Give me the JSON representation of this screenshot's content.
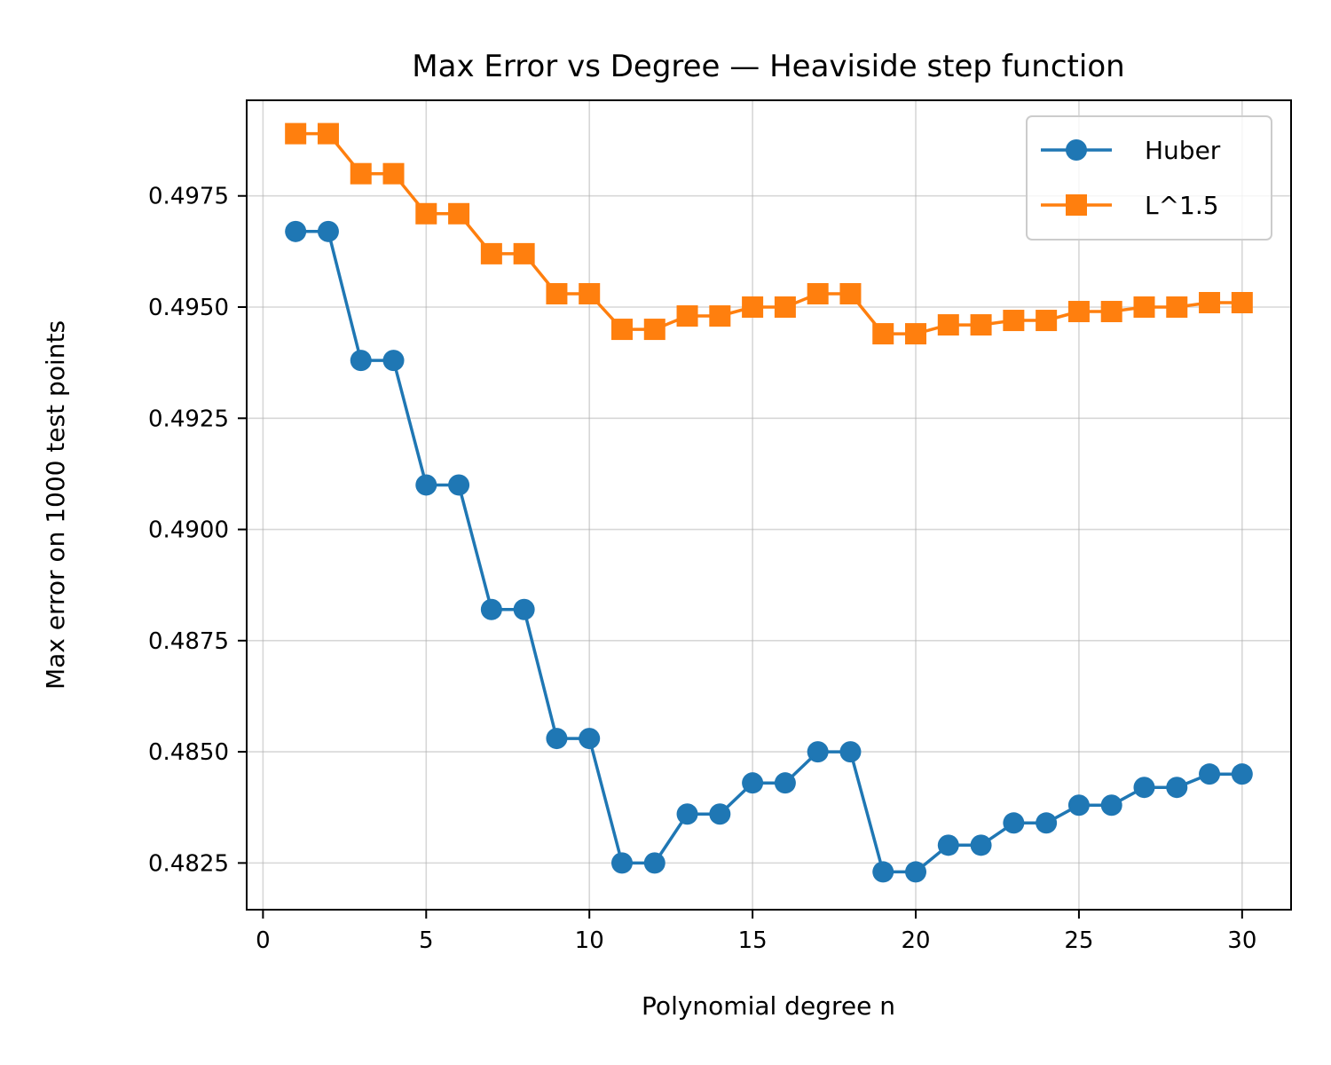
{
  "chart_data": {
    "type": "line",
    "title": "Max Error vs Degree — Heaviside step function",
    "xlabel": "Polynomial degree n",
    "ylabel": "Max error on 1000 test points",
    "xlim": [
      -0.5,
      31.5
    ],
    "ylim": [
      0.48145,
      0.49965
    ],
    "xticks": [
      0,
      5,
      10,
      15,
      20,
      25,
      30
    ],
    "xtick_labels": [
      "0",
      "5",
      "10",
      "15",
      "20",
      "25",
      "30"
    ],
    "yticks": [
      0.4825,
      0.485,
      0.4875,
      0.49,
      0.4925,
      0.495,
      0.4975
    ],
    "ytick_labels": [
      "0.4825",
      "0.4850",
      "0.4875",
      "0.4900",
      "0.4925",
      "0.4950",
      "0.4975"
    ],
    "grid": true,
    "legend_position": "top-right",
    "x": [
      1,
      2,
      3,
      4,
      5,
      6,
      7,
      8,
      9,
      10,
      11,
      12,
      13,
      14,
      15,
      16,
      17,
      18,
      19,
      20,
      21,
      22,
      23,
      24,
      25,
      26,
      27,
      28,
      29,
      30
    ],
    "series": [
      {
        "name": "Huber",
        "color": "#1f77b4",
        "marker": "circle",
        "values": [
          0.4967,
          0.4967,
          0.4938,
          0.4938,
          0.491,
          0.491,
          0.4882,
          0.4882,
          0.4853,
          0.4853,
          0.4825,
          0.4825,
          0.4836,
          0.4836,
          0.4843,
          0.4843,
          0.485,
          0.485,
          0.4823,
          0.4823,
          0.4829,
          0.4829,
          0.4834,
          0.4834,
          0.4838,
          0.4838,
          0.4842,
          0.4842,
          0.4845,
          0.4845
        ]
      },
      {
        "name": "L^1.5",
        "color": "#ff7f0e",
        "marker": "square",
        "values": [
          0.4989,
          0.4989,
          0.498,
          0.498,
          0.4971,
          0.4971,
          0.4962,
          0.4962,
          0.4953,
          0.4953,
          0.4945,
          0.4945,
          0.4948,
          0.4948,
          0.495,
          0.495,
          0.4953,
          0.4953,
          0.4944,
          0.4944,
          0.4946,
          0.4946,
          0.4947,
          0.4947,
          0.4949,
          0.4949,
          0.495,
          0.495,
          0.4951,
          0.4951
        ]
      }
    ]
  }
}
